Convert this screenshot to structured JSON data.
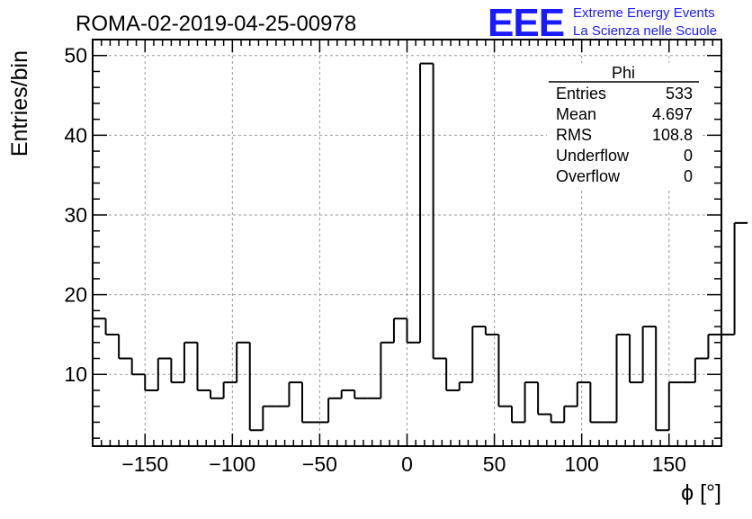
{
  "header": {
    "run_title": "ROMA-02-2019-04-25-00978",
    "logo_text": "EEE",
    "logo_line1": "Extreme Energy Events",
    "logo_line2": "La Scienza nelle Scuole"
  },
  "colors": {
    "logo": "#1a1aff",
    "histogram": "#000000",
    "grid": "#9a9a9a"
  },
  "stats_box": {
    "title": "Phi",
    "rows": [
      {
        "label": "Entries",
        "value": "533"
      },
      {
        "label": "Mean",
        "value": "4.697"
      },
      {
        "label": "RMS",
        "value": "108.8"
      },
      {
        "label": "Underflow",
        "value": "0"
      },
      {
        "label": "Overflow",
        "value": "0"
      }
    ]
  },
  "chart_data": {
    "type": "bar",
    "style": "step-histogram",
    "xlabel": "ϕ [°]",
    "ylabel": "Entries/bin",
    "xlim": [
      -180,
      180
    ],
    "ylim": [
      1,
      52
    ],
    "x_ticks": [
      -150,
      -100,
      -50,
      0,
      50,
      100,
      150
    ],
    "x_tick_labels": [
      "−150",
      "−100",
      "−50",
      "0",
      "50",
      "100",
      "150"
    ],
    "y_ticks": [
      10,
      20,
      30,
      40,
      50
    ],
    "y_tick_labels": [
      "10",
      "20",
      "30",
      "40",
      "50"
    ],
    "grid": true,
    "bin_width": 7.5,
    "bin_edges_start": -180,
    "values": [
      17,
      15,
      12,
      10,
      8,
      12,
      9,
      14,
      8,
      7,
      9,
      14,
      3,
      6,
      6,
      9,
      4,
      4,
      7,
      8,
      7,
      7,
      14,
      17,
      14,
      49,
      12,
      8,
      9,
      16,
      15,
      6,
      4,
      9,
      5,
      4,
      6,
      9,
      4,
      4,
      15,
      9,
      16,
      3,
      9,
      9,
      12,
      15,
      15,
      29
    ]
  }
}
